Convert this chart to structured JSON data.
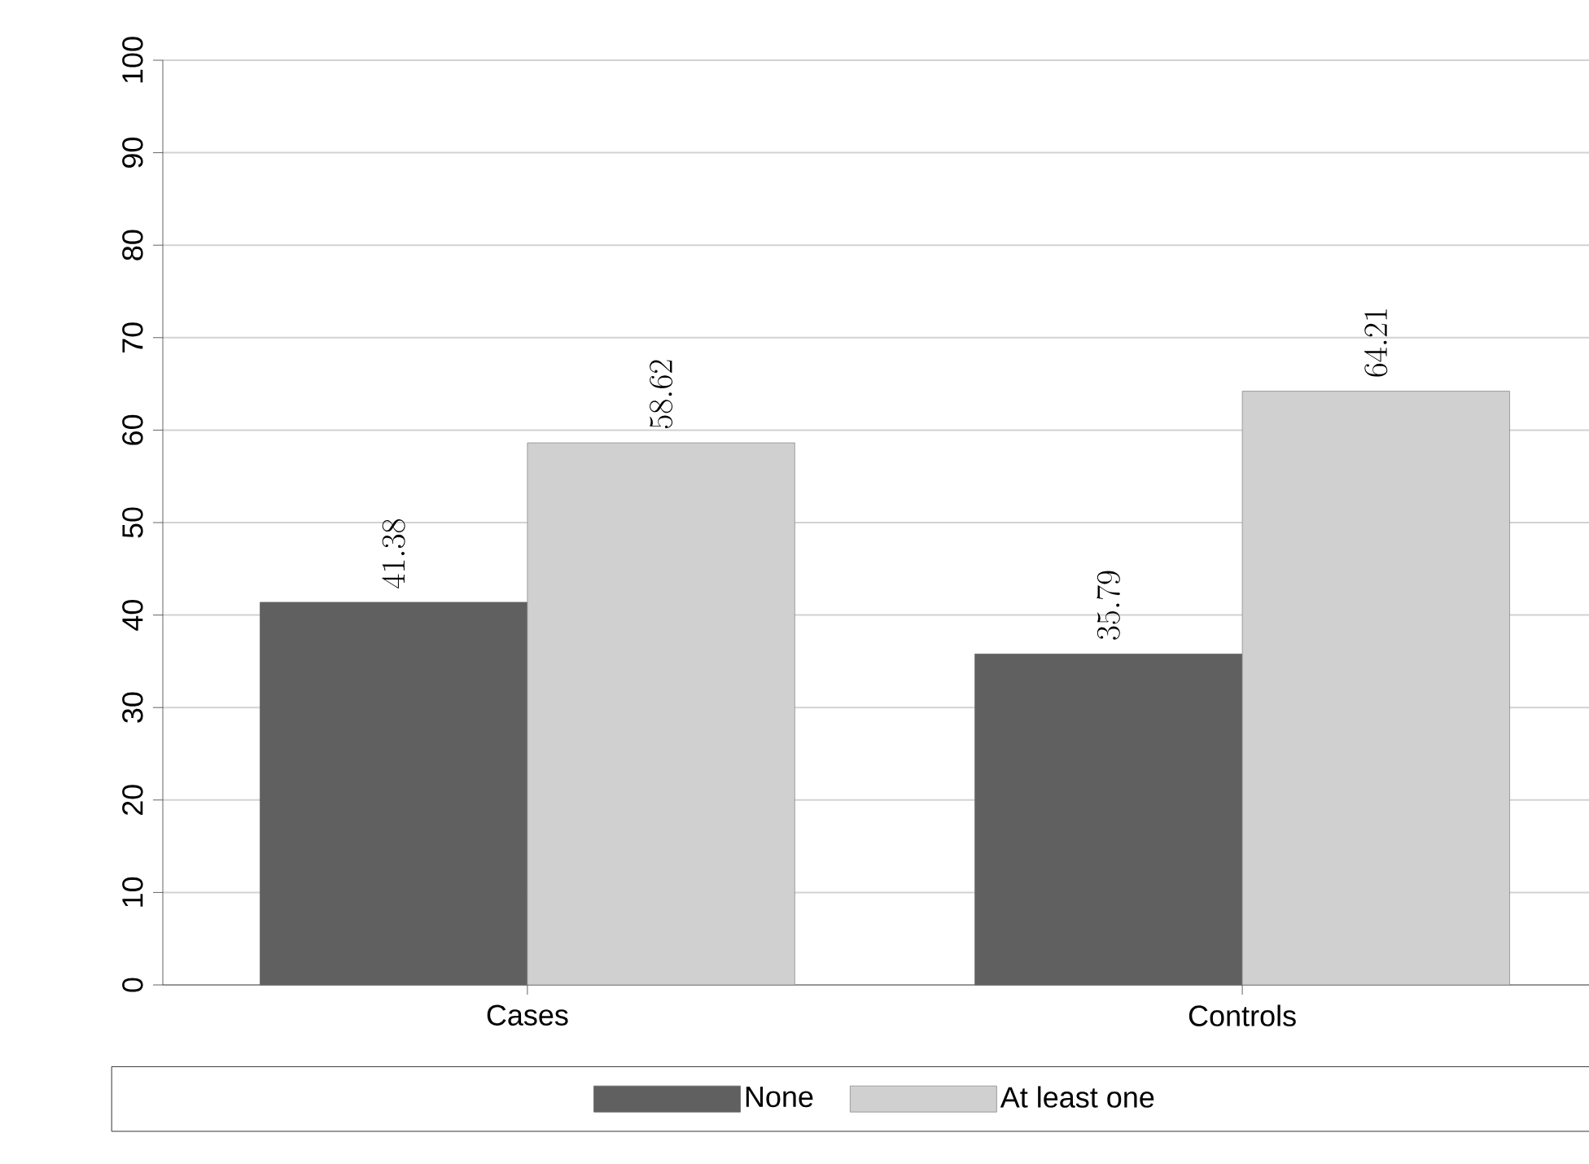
{
  "chart_data": {
    "type": "bar",
    "categories": [
      "Cases",
      "Controls"
    ],
    "series": [
      {
        "name": "None",
        "color": "#606060",
        "values": [
          41.38,
          35.79
        ]
      },
      {
        "name": "At least one",
        "color": "#d0d0d0",
        "values": [
          58.62,
          64.21
        ]
      }
    ],
    "ylim": [
      0,
      100
    ],
    "yticks": [
      0,
      10,
      20,
      30,
      40,
      50,
      60,
      70,
      80,
      90,
      100
    ],
    "grid": "y",
    "legend": "bottom",
    "data_labels": true
  }
}
